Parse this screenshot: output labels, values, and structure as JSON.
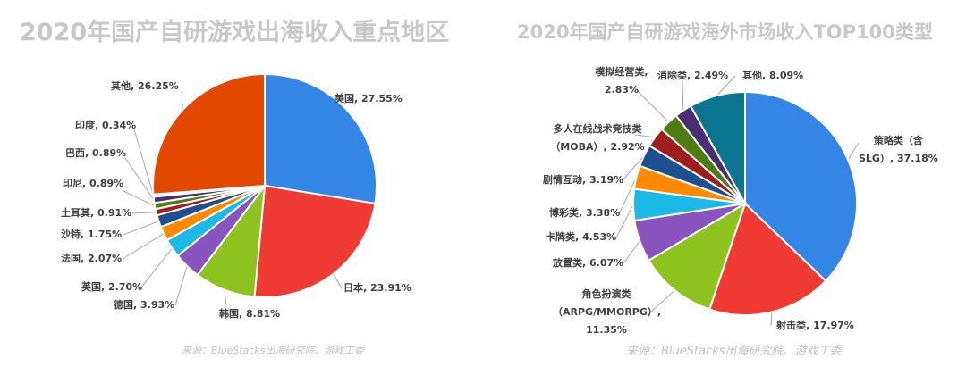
{
  "chart_data": [
    {
      "type": "pie",
      "title": "2020年国产自研游戏出海收入重点地区",
      "source": "来源：BlueStacks出海研究院、游戏工委",
      "slices": [
        {
          "label": "美国, 27.55%",
          "name": "美国",
          "value": 27.55,
          "color": "#3386e6"
        },
        {
          "label": "日本, 23.91%",
          "name": "日本",
          "value": 23.91,
          "color": "#f03b35"
        },
        {
          "label": "韩国, 8.81%",
          "name": "韩国",
          "value": 8.81,
          "color": "#8dc21f"
        },
        {
          "label": "德国, 3.93%",
          "name": "德国",
          "value": 3.93,
          "color": "#8954bf"
        },
        {
          "label": "英国, 2.70%",
          "name": "英国",
          "value": 2.7,
          "color": "#1bb9e6"
        },
        {
          "label": "法国, 2.07%",
          "name": "法国",
          "value": 2.07,
          "color": "#ff8a00"
        },
        {
          "label": "沙特, 1.75%",
          "name": "沙特",
          "value": 1.75,
          "color": "#1e4f8e"
        },
        {
          "label": "土耳其, 0.91%",
          "name": "土耳其",
          "value": 0.91,
          "color": "#a01d1d"
        },
        {
          "label": "印尼, 0.89%",
          "name": "印尼",
          "value": 0.89,
          "color": "#4f7c12"
        },
        {
          "label": "巴西, 0.89%",
          "name": "巴西",
          "value": 0.89,
          "color": "#4b2e72"
        },
        {
          "label": "印度, 0.34%",
          "name": "印度",
          "value": 0.34,
          "color": "#e8eef8"
        },
        {
          "label": "其他, 26.25%",
          "name": "其他",
          "value": 26.25,
          "color": "#e34800"
        }
      ]
    },
    {
      "type": "pie",
      "title": "2020年国产自研游戏海外市场收入TOP100类型",
      "source": "来源：BlueStacks出海研究院、游戏工委",
      "slices": [
        {
          "label": "策略类（含 SLG）, 37.18%",
          "l1": "策略类（含",
          "l2": "SLG）, 37.18%",
          "name": "策略类（含SLG）",
          "value": 37.18,
          "color": "#3386e6"
        },
        {
          "label": "射击类, 17.97%",
          "name": "射击类",
          "value": 17.97,
          "color": "#f03b35"
        },
        {
          "label": "角色扮演类（ARPG/MMORPG）, 11.35%",
          "l1": "角色扮演类",
          "l2": "（ARPG/MMORPG）,",
          "l3": "11.35%",
          "name": "角色扮演类（ARPG/MMORPG）",
          "value": 11.35,
          "color": "#8dc21f"
        },
        {
          "label": "放置类, 6.07%",
          "name": "放置类",
          "value": 6.07,
          "color": "#8954bf"
        },
        {
          "label": "卡牌类, 4.53%",
          "name": "卡牌类",
          "value": 4.53,
          "color": "#1bb9e6"
        },
        {
          "label": "博彩类, 3.38%",
          "name": "博彩类",
          "value": 3.38,
          "color": "#ff8a00"
        },
        {
          "label": "剧情互动, 3.19%",
          "name": "剧情互动",
          "value": 3.19,
          "color": "#1e4f8e"
        },
        {
          "label": "多人在线战术竞技类（MOBA）, 2.92%",
          "l1": "多人在线战术竞技类",
          "l2": "（MOBA）, 2.92%",
          "name": "多人在线战术竞技类（MOBA）",
          "value": 2.92,
          "color": "#a01d1d"
        },
        {
          "label": "模拟经营类, 2.83%",
          "l1": "模拟经营类,",
          "l2": "2.83%",
          "name": "模拟经营类",
          "value": 2.83,
          "color": "#4f7c12"
        },
        {
          "label": "消除类, 2.49%",
          "name": "消除类",
          "value": 2.49,
          "color": "#4b2e72"
        },
        {
          "label": "其他, 8.09%",
          "name": "其他",
          "value": 8.09,
          "color": "#0b7491"
        }
      ]
    }
  ]
}
